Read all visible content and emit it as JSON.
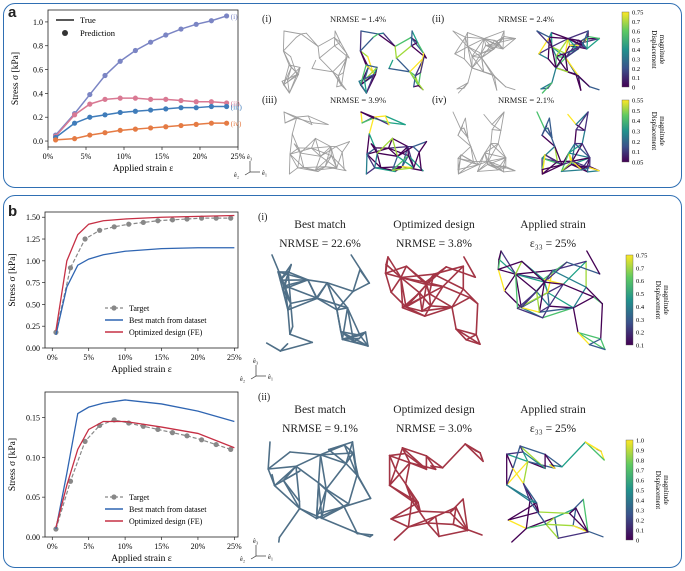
{
  "panels": {
    "a": {
      "label": "a"
    },
    "b": {
      "label": "b"
    }
  },
  "axes_triad": {
    "z": "ê₃",
    "y": "ê₂",
    "x": "ê₁"
  },
  "panel_a": {
    "lattices": [
      {
        "roman": "(i)",
        "nrmse": "NRMSE = 1.4%"
      },
      {
        "roman": "(ii)",
        "nrmse": "NRMSE = 2.4%"
      },
      {
        "roman": "(iii)",
        "nrmse": "NRMSE = 3.9%"
      },
      {
        "roman": "(iv)",
        "nrmse": "NRMSE = 2.1%"
      }
    ],
    "colorbars": [
      {
        "title": "Displacement magnitude",
        "ticks": [
          "0.75",
          "0.7",
          "0.6",
          "0.5",
          "0.4",
          "0.3",
          "0.2",
          "0.1",
          "0"
        ]
      },
      {
        "title": "Displacement magnitude",
        "ticks": [
          "0.55",
          "0.5",
          "0.4",
          "0.3",
          "0.2",
          "0.1",
          "0.05"
        ]
      }
    ]
  },
  "panel_b": {
    "rows": [
      {
        "roman": "(i)",
        "best_title": "Best match",
        "best_nrmse": "NRMSE = 22.6%",
        "opt_title": "Optimized design",
        "opt_nrmse": "NRMSE = 3.8%",
        "strain_title": "Applied strain",
        "strain_value": "ε₃₃ = 25%",
        "colorbar": {
          "title": "Displacement magnitude",
          "ticks": [
            "0.75",
            "0.7",
            "0.6",
            "0.5",
            "0.4",
            "0.3",
            "0.2",
            "0.1"
          ]
        }
      },
      {
        "roman": "(ii)",
        "best_title": "Best match",
        "best_nrmse": "NRMSE = 9.1%",
        "opt_title": "Optimized design",
        "opt_nrmse": "NRMSE = 3.0%",
        "strain_title": "Applied strain",
        "strain_value": "ε₃₃ = 25%",
        "colorbar": {
          "title": "Displacement magnitude",
          "ticks": [
            "1.0",
            "0.9",
            "0.8",
            "0.7",
            "0.6",
            "0.5",
            "0.4",
            "0.3",
            "0.2",
            "0.1",
            "0"
          ]
        }
      }
    ]
  },
  "chart_data": [
    {
      "type": "line",
      "title": "",
      "xlabel": "Applied strain  ε",
      "ylabel": "Stress  σ [kPa]",
      "xlim": [
        0,
        25
      ],
      "ylim": [
        -0.05,
        1.1
      ],
      "xtick_values": [
        0,
        5,
        10,
        15,
        20,
        25
      ],
      "xticks": [
        "0%",
        "5%",
        "10%",
        "15%",
        "20%",
        "25%"
      ],
      "ytick_values": [
        0,
        0.2,
        0.4,
        0.6,
        0.8,
        1.0
      ],
      "yticks": [
        "0.0",
        "0.2",
        "0.4",
        "0.6",
        "0.8",
        "1.0"
      ],
      "legend": [
        {
          "name": "True",
          "style": "line"
        },
        {
          "name": "Prediction",
          "style": "marker"
        }
      ],
      "series_labels": [
        "(i)",
        "(ii)",
        "(iii)",
        "(iv)"
      ],
      "x": [
        1,
        3.5,
        5.5,
        7.5,
        9.5,
        11.5,
        13.5,
        15.5,
        17.5,
        19.5,
        21.5,
        23.5
      ],
      "series": [
        {
          "name": "(i)",
          "color": "#7b85c4",
          "values": [
            0.05,
            0.23,
            0.39,
            0.55,
            0.67,
            0.76,
            0.83,
            0.89,
            0.94,
            0.98,
            1.01,
            1.05
          ]
        },
        {
          "name": "(ii)",
          "color": "#d97993",
          "values": [
            0.04,
            0.22,
            0.31,
            0.35,
            0.36,
            0.36,
            0.35,
            0.35,
            0.34,
            0.33,
            0.33,
            0.32
          ]
        },
        {
          "name": "(iii)",
          "color": "#3f7cba",
          "values": [
            0.03,
            0.15,
            0.2,
            0.22,
            0.24,
            0.25,
            0.26,
            0.27,
            0.28,
            0.28,
            0.29,
            0.29
          ]
        },
        {
          "name": "(iv)",
          "color": "#e57b44",
          "values": [
            0.01,
            0.02,
            0.05,
            0.07,
            0.09,
            0.1,
            0.11,
            0.12,
            0.13,
            0.14,
            0.15,
            0.15
          ]
        }
      ]
    },
    {
      "type": "line",
      "title": "",
      "xlabel": "Applied strain  ε",
      "ylabel": "Stress  σ [kPa]",
      "xlim": [
        -1,
        25.5
      ],
      "ylim": [
        0,
        1.56
      ],
      "xtick_values": [
        0,
        5,
        10,
        15,
        20,
        25
      ],
      "xticks": [
        "0%",
        "5%",
        "10%",
        "15%",
        "20%",
        "25%"
      ],
      "ytick_values": [
        0,
        0.25,
        0.5,
        0.75,
        1.0,
        1.25,
        1.5
      ],
      "yticks": [
        "0.00",
        "0.25",
        "0.50",
        "0.75",
        "1.00",
        "1.25",
        "1.50"
      ],
      "legend": [
        {
          "name": "Target",
          "style": "dashed-marker",
          "color": "#888888"
        },
        {
          "name": "Best match from dataset",
          "style": "line",
          "color": "#2f65b2"
        },
        {
          "name": "Optimized design (FE)",
          "style": "line",
          "color": "#c63045"
        }
      ],
      "series": [
        {
          "name": "Target",
          "color": "#888888",
          "style": "dashed-marker",
          "x": [
            0.5,
            2.5,
            4.5,
            6.5,
            8.5,
            10.5,
            12.5,
            14.5,
            16.5,
            18.5,
            20.5,
            22.5,
            24.5
          ],
          "values": [
            0.18,
            0.92,
            1.25,
            1.35,
            1.39,
            1.42,
            1.44,
            1.46,
            1.47,
            1.48,
            1.49,
            1.49,
            1.49
          ]
        },
        {
          "name": "Best match from dataset",
          "color": "#2f65b2",
          "style": "line",
          "x": [
            0.5,
            2,
            3.5,
            5,
            7,
            10,
            15,
            20,
            25
          ],
          "values": [
            0.15,
            0.7,
            0.95,
            1.02,
            1.07,
            1.11,
            1.14,
            1.15,
            1.15
          ]
        },
        {
          "name": "Optimized design (FE)",
          "color": "#c63045",
          "style": "line",
          "x": [
            0.5,
            2,
            3.5,
            5,
            7,
            10,
            15,
            20,
            25
          ],
          "values": [
            0.2,
            1.0,
            1.3,
            1.42,
            1.46,
            1.48,
            1.5,
            1.51,
            1.52
          ]
        }
      ]
    },
    {
      "type": "line",
      "title": "",
      "xlabel": "Applied strain  ε",
      "ylabel": "Stress  σ [kPa]",
      "xlim": [
        -1,
        25.5
      ],
      "ylim": [
        0,
        0.182
      ],
      "xtick_values": [
        0,
        5,
        10,
        15,
        20,
        25
      ],
      "xticks": [
        "0%",
        "5%",
        "10%",
        "15%",
        "20%",
        "25%"
      ],
      "ytick_values": [
        0,
        0.05,
        0.1,
        0.15
      ],
      "yticks": [
        "0.00",
        "0.05",
        "0.10",
        "0.15"
      ],
      "legend": [
        {
          "name": "Target",
          "style": "dashed-marker",
          "color": "#888888"
        },
        {
          "name": "Best match from dataset",
          "style": "line",
          "color": "#2f65b2"
        },
        {
          "name": "Optimized design (FE)",
          "style": "line",
          "color": "#c63045"
        }
      ],
      "series": [
        {
          "name": "Target",
          "color": "#888888",
          "style": "dashed-marker",
          "x": [
            0.5,
            2.5,
            4.5,
            6.5,
            8.5,
            10.5,
            12.5,
            14.5,
            16.5,
            18.5,
            20.5,
            22.5,
            24.5
          ],
          "values": [
            0.01,
            0.07,
            0.12,
            0.14,
            0.147,
            0.143,
            0.139,
            0.135,
            0.131,
            0.127,
            0.122,
            0.116,
            0.11
          ]
        },
        {
          "name": "Best match from dataset",
          "color": "#2f65b2",
          "style": "line",
          "x": [
            0.5,
            2,
            3.5,
            5,
            7,
            10,
            15,
            20,
            25
          ],
          "values": [
            0.01,
            0.08,
            0.155,
            0.163,
            0.168,
            0.172,
            0.167,
            0.158,
            0.145
          ]
        },
        {
          "name": "Optimized design (FE)",
          "color": "#c63045",
          "style": "line",
          "x": [
            0.5,
            2,
            3.5,
            5,
            7,
            10,
            15,
            20,
            25
          ],
          "values": [
            0.012,
            0.065,
            0.11,
            0.135,
            0.145,
            0.145,
            0.138,
            0.13,
            0.112
          ]
        }
      ]
    }
  ]
}
